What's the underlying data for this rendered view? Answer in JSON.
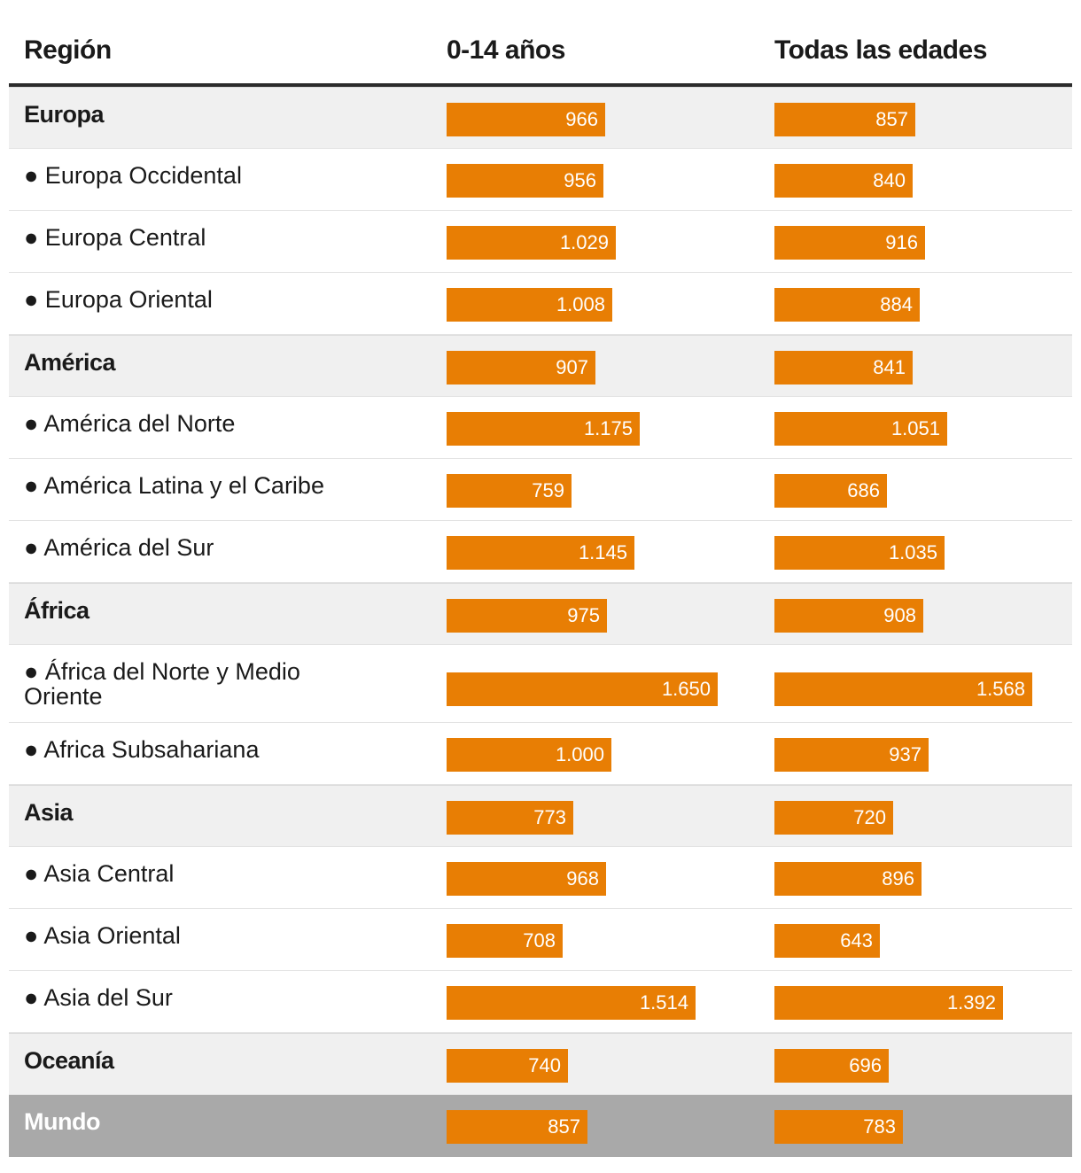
{
  "chart_data": {
    "type": "table",
    "columns": [
      "Región",
      "0-14 años",
      "Todas las edades"
    ],
    "bar_color": "#e87e04",
    "rows": [
      {
        "label": "Europa",
        "level": "parent",
        "a": 966,
        "a_label": "966",
        "b": 857,
        "b_label": "857"
      },
      {
        "label": "● Europa Occidental",
        "level": "child",
        "a": 956,
        "a_label": "956",
        "b": 840,
        "b_label": "840"
      },
      {
        "label": "● Europa Central",
        "level": "child",
        "a": 1029,
        "a_label": "1.029",
        "b": 916,
        "b_label": "916"
      },
      {
        "label": "● Europa Oriental",
        "level": "child",
        "a": 1008,
        "a_label": "1.008",
        "b": 884,
        "b_label": "884"
      },
      {
        "label": "América",
        "level": "parent",
        "a": 907,
        "a_label": "907",
        "b": 841,
        "b_label": "841"
      },
      {
        "label": "● América del Norte",
        "level": "child",
        "a": 1175,
        "a_label": "1.175",
        "b": 1051,
        "b_label": "1.051"
      },
      {
        "label": "● América Latina y el Caribe",
        "level": "child",
        "a": 759,
        "a_label": "759",
        "b": 686,
        "b_label": "686"
      },
      {
        "label": "● América del Sur",
        "level": "child",
        "a": 1145,
        "a_label": "1.145",
        "b": 1035,
        "b_label": "1.035"
      },
      {
        "label": "África",
        "level": "parent",
        "a": 975,
        "a_label": "975",
        "b": 908,
        "b_label": "908"
      },
      {
        "label": "● África del Norte y Medio Oriente",
        "level": "child",
        "tall": true,
        "a": 1650,
        "a_label": "1.650",
        "b": 1568,
        "b_label": "1.568"
      },
      {
        "label": "● Africa Subsahariana",
        "level": "child",
        "a": 1000,
        "a_label": "1.000",
        "b": 937,
        "b_label": "937"
      },
      {
        "label": "Asia",
        "level": "parent",
        "a": 773,
        "a_label": "773",
        "b": 720,
        "b_label": "720"
      },
      {
        "label": "● Asia Central",
        "level": "child",
        "a": 968,
        "a_label": "968",
        "b": 896,
        "b_label": "896"
      },
      {
        "label": "● Asia Oriental",
        "level": "child",
        "a": 708,
        "a_label": "708",
        "b": 643,
        "b_label": "643"
      },
      {
        "label": "● Asia del Sur",
        "level": "child",
        "a": 1514,
        "a_label": "1.514",
        "b": 1392,
        "b_label": "1.392"
      },
      {
        "label": "Oceanía",
        "level": "parent",
        "a": 740,
        "a_label": "740",
        "b": 696,
        "b_label": "696"
      },
      {
        "label": "Mundo",
        "level": "world",
        "a": 857,
        "a_label": "857",
        "b": 783,
        "b_label": "783"
      }
    ]
  }
}
